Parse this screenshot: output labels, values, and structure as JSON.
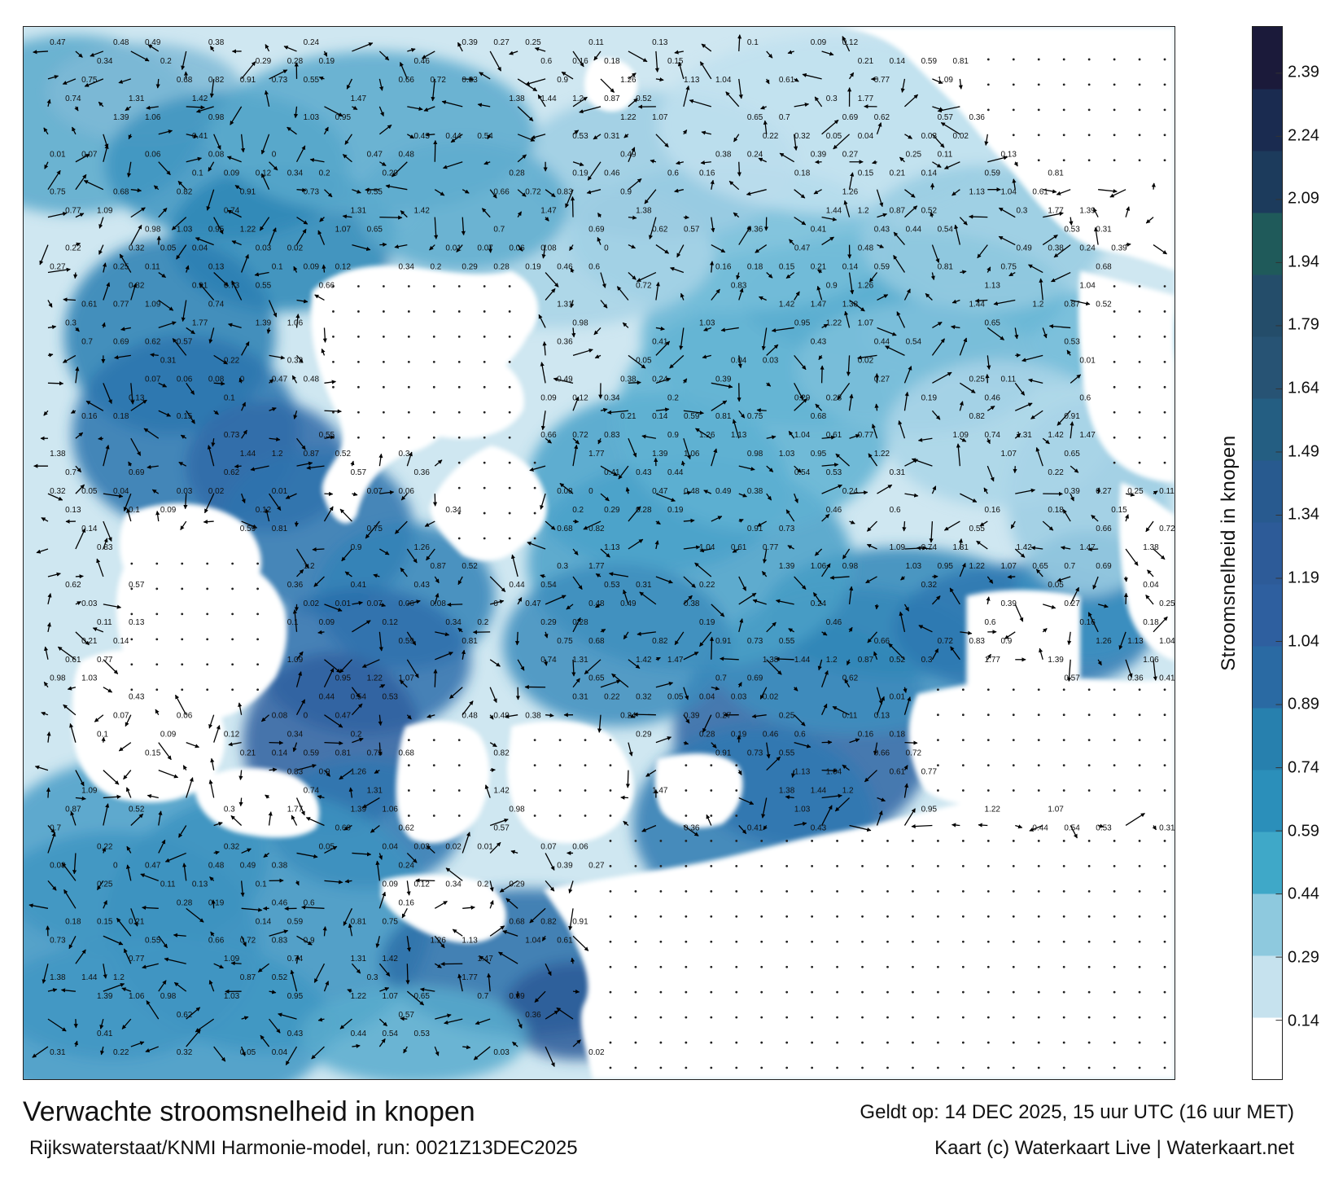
{
  "map": {
    "title": "Verwachte stroomsnelheid in knopen",
    "valid_time": "Geldt op: 14 DEC 2025, 15 uur UTC (16 uur MET)",
    "model_run": "Rijkswaterstaat/KNMI Harmonie-model, run: 0021Z13DEC2025",
    "credit": "Kaart (c) Waterkaart Live | Waterkaart.net"
  },
  "colorbar": {
    "title": "Stroomsnelheid in knopen",
    "ticks": [
      "0.14",
      "0.29",
      "0.44",
      "0.59",
      "0.74",
      "0.89",
      "1.04",
      "1.19",
      "1.34",
      "1.49",
      "1.64",
      "1.79",
      "1.94",
      "2.09",
      "2.24",
      "2.39"
    ],
    "min": 0,
    "max": 2.5,
    "colors": [
      "#ffffff",
      "#c6e2ee",
      "#8ec9de",
      "#3fa8c8",
      "#2b8fba",
      "#2780ae",
      "#2a6aa3",
      "#2e5f9f",
      "#2d5b98",
      "#285a8f",
      "#245e82",
      "#275374",
      "#244d6a",
      "#1f5a5a",
      "#1c3b5c",
      "#1a2b50",
      "#1b1a3a"
    ]
  },
  "chart_data": {
    "type": "heatmap",
    "title": "Verwachte stroomsnelheid in knopen",
    "colorbar_label": "Stroomsnelheid in knopen",
    "colorbar_ticks": [
      0.14,
      0.29,
      0.44,
      0.59,
      0.74,
      0.89,
      1.04,
      1.19,
      1.34,
      1.49,
      1.64,
      1.79,
      1.94,
      2.09,
      2.24,
      2.39
    ],
    "value_range": [
      0,
      2.5
    ],
    "sample_labels": [
      "0.47",
      "0.48",
      "0.49",
      "0.38",
      "0.24",
      "0.39",
      "0.27",
      "0.25",
      "0.11",
      "0.13",
      "0.1",
      "0.09",
      "0.12",
      "0.34",
      "0.2",
      "0.29",
      "0.28",
      "0.19",
      "0.46",
      "0.6",
      "0.16",
      "0.18",
      "0.15",
      "0.21",
      "0.14",
      "0.59",
      "0.81",
      "0.75",
      "0.68",
      "0.82",
      "0.91",
      "0.73",
      "0.55",
      "0.66",
      "0.72",
      "0.83",
      "0.9",
      "1.26",
      "1.13",
      "1.04",
      "0.61",
      "0.77",
      "1.09",
      "0.74",
      "1.31",
      "1.42",
      "1.47",
      "1.38",
      "1.44",
      "1.2",
      "0.87",
      "0.52",
      "0.3",
      "1.77",
      "1.39",
      "1.06",
      "0.98",
      "1.03",
      "0.95",
      "1.22",
      "1.07",
      "0.65",
      "0.7",
      "0.69",
      "0.62",
      "0.57",
      "0.36",
      "0.41",
      "0.43",
      "0.44",
      "0.54",
      "0.53",
      "0.31",
      "0.22",
      "0.32",
      "0.05",
      "0.04",
      "0.03",
      "0.02",
      "0.01",
      "0.07",
      "0.06",
      "0.08",
      "0"
    ]
  }
}
